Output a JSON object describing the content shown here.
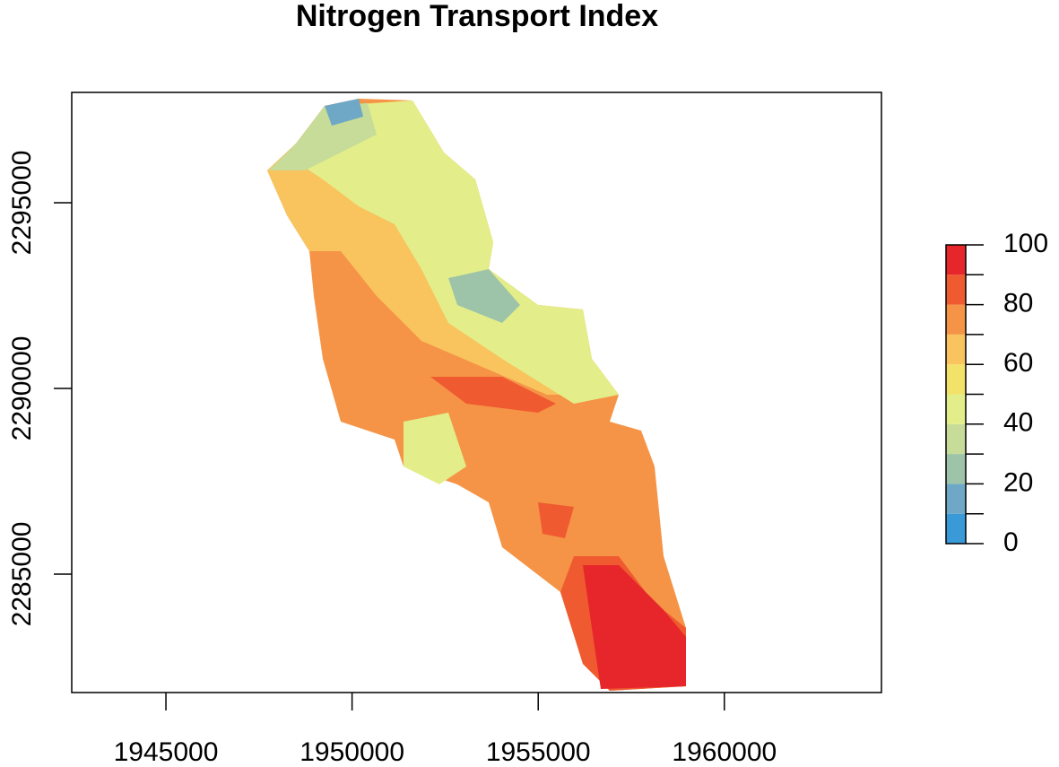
{
  "chart_data": {
    "type": "raster",
    "title": "Nitrogen Transport Index",
    "xlim": [
      1942470,
      1964220
    ],
    "xticks": [
      1945000,
      1950000,
      1955000,
      1960000
    ],
    "ylim": [
      2281810,
      2297970
    ],
    "yticks": [
      2285000,
      2290000,
      2295000
    ],
    "legend": {
      "lim": [
        0,
        100
      ],
      "ticks": [
        0,
        20,
        40,
        60,
        80,
        100
      ],
      "breaks": [
        0,
        10,
        20,
        30,
        40,
        50,
        60,
        70,
        80,
        90,
        100
      ],
      "colors": [
        "#3a9ad8",
        "#6ea8c6",
        "#9dc3a8",
        "#c6dc98",
        "#e3ee8a",
        "#f3e26a",
        "#f9c35e",
        "#f59446",
        "#ef5a30",
        "#e6262a"
      ]
    }
  }
}
